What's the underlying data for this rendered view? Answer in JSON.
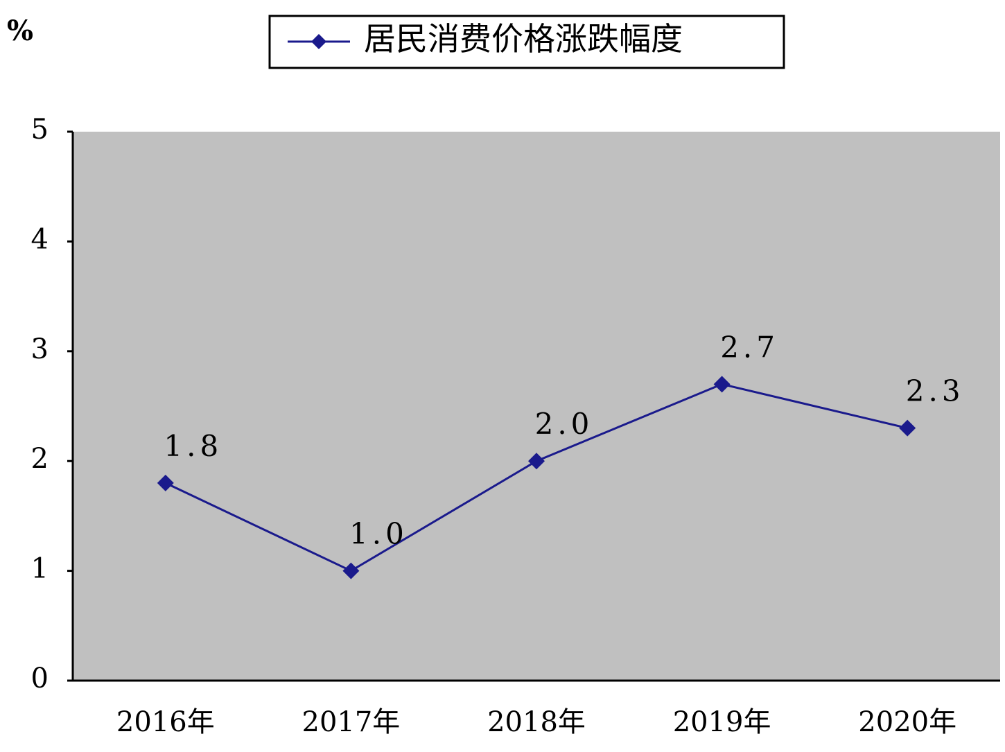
{
  "chart_data": {
    "type": "line",
    "y_label": "%",
    "categories": [
      "2016年",
      "2017年",
      "2018年",
      "2019年",
      "2020年"
    ],
    "series": [
      {
        "name": "居民消费价格涨跌幅度",
        "color": "#1a1a8c",
        "values": [
          1.8,
          1.0,
          2.0,
          2.7,
          2.3
        ],
        "value_labels": [
          "1.8",
          "1.0",
          "2.0",
          "2.7",
          "2.3"
        ]
      }
    ],
    "ylim": [
      0,
      5
    ],
    "yticks": [
      0,
      1,
      2,
      3,
      4,
      5
    ],
    "plot_background": "#c0c0c0",
    "legend": "top"
  }
}
